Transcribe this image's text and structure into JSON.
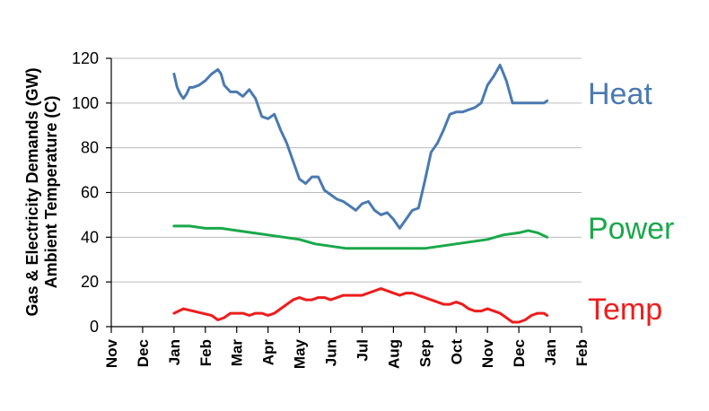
{
  "chart_data": {
    "type": "line",
    "ylabel": [
      "Gas & Electricity Demands (GW)",
      "Ambient Temperature (C)"
    ],
    "xlabel": "",
    "x_ticks": [
      "Nov",
      "Dec",
      "Jan",
      "Feb",
      "Mar",
      "Apr",
      "May",
      "Jun",
      "Jul",
      "Aug",
      "Sep",
      "Oct",
      "Nov",
      "Dec",
      "Jan",
      "Feb"
    ],
    "y_ticks": [
      0,
      20,
      40,
      60,
      80,
      100,
      120
    ],
    "ylim": [
      0,
      120
    ],
    "xlim": [
      0,
      15
    ],
    "grid": "horizontal",
    "legend": "inline labels at right end of each series",
    "series": [
      {
        "name": "Heat",
        "color": "#4a7ab0",
        "x": [
          2.0,
          2.1,
          2.2,
          2.3,
          2.4,
          2.5,
          2.6,
          2.8,
          3.0,
          3.2,
          3.4,
          3.5,
          3.6,
          3.8,
          4.0,
          4.2,
          4.4,
          4.6,
          4.8,
          5.0,
          5.2,
          5.4,
          5.6,
          5.8,
          6.0,
          6.2,
          6.4,
          6.6,
          6.8,
          7.0,
          7.2,
          7.4,
          7.6,
          7.8,
          8.0,
          8.2,
          8.4,
          8.6,
          8.8,
          9.0,
          9.2,
          9.4,
          9.6,
          9.8,
          10.0,
          10.2,
          10.4,
          10.6,
          10.8,
          11.0,
          11.2,
          11.4,
          11.6,
          11.8,
          12.0,
          12.2,
          12.4,
          12.6,
          12.8,
          13.0,
          13.2,
          13.4,
          13.6,
          13.8,
          13.9
        ],
        "values": [
          113,
          107,
          104,
          102,
          104,
          107,
          107,
          108,
          110,
          113,
          115,
          113,
          108,
          105,
          105,
          103,
          106,
          102,
          94,
          93,
          95,
          88,
          82,
          74,
          66,
          64,
          67,
          67,
          61,
          59,
          57,
          56,
          54,
          52,
          55,
          56,
          52,
          50,
          51,
          48,
          44,
          48,
          52,
          53,
          65,
          78,
          82,
          88,
          95,
          96,
          96,
          97,
          98,
          100,
          108,
          112,
          117,
          110,
          100,
          100,
          100,
          100,
          100,
          100,
          101
        ]
      },
      {
        "name": "Power",
        "color": "#1aa84a",
        "x": [
          2.0,
          2.5,
          3.0,
          3.5,
          4.0,
          4.5,
          5.0,
          5.5,
          6.0,
          6.5,
          7.0,
          7.5,
          8.0,
          8.5,
          9.0,
          9.5,
          10.0,
          10.5,
          11.0,
          11.5,
          12.0,
          12.5,
          13.0,
          13.3,
          13.6,
          13.9
        ],
        "values": [
          45,
          45,
          44,
          44,
          43,
          42,
          41,
          40,
          39,
          37,
          36,
          35,
          35,
          35,
          35,
          35,
          35,
          36,
          37,
          38,
          39,
          41,
          42,
          43,
          42,
          40
        ]
      },
      {
        "name": "Temp",
        "color": "#ee1c1c",
        "x": [
          2.0,
          2.3,
          2.6,
          2.9,
          3.2,
          3.4,
          3.6,
          3.8,
          4.0,
          4.2,
          4.4,
          4.6,
          4.8,
          5.0,
          5.2,
          5.4,
          5.6,
          5.8,
          6.0,
          6.2,
          6.4,
          6.6,
          6.8,
          7.0,
          7.2,
          7.4,
          7.6,
          7.8,
          8.0,
          8.2,
          8.4,
          8.6,
          8.8,
          9.0,
          9.2,
          9.4,
          9.6,
          9.8,
          10.0,
          10.2,
          10.4,
          10.6,
          10.8,
          11.0,
          11.2,
          11.4,
          11.6,
          11.8,
          12.0,
          12.2,
          12.4,
          12.6,
          12.8,
          13.0,
          13.2,
          13.4,
          13.6,
          13.8,
          13.9
        ],
        "values": [
          6,
          8,
          7,
          6,
          5,
          3,
          4,
          6,
          6,
          6,
          5,
          6,
          6,
          5,
          6,
          8,
          10,
          12,
          13,
          12,
          12,
          13,
          13,
          12,
          13,
          14,
          14,
          14,
          14,
          15,
          16,
          17,
          16,
          15,
          14,
          15,
          15,
          14,
          13,
          12,
          11,
          10,
          10,
          11,
          10,
          8,
          7,
          7,
          8,
          7,
          6,
          4,
          2,
          2,
          3,
          5,
          6,
          6,
          5
        ]
      }
    ]
  }
}
